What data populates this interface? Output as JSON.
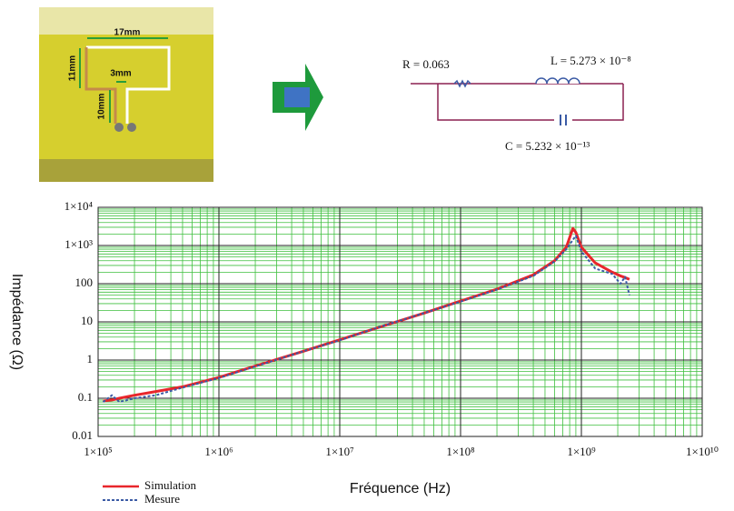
{
  "photo": {
    "width": "17mm",
    "height": "11mm",
    "gap": "3mm",
    "leg": "10mm"
  },
  "circuit": {
    "r": "R = 0.063",
    "l": "L = 5.273 × 10⁻⁸",
    "c": "C = 5.232 × 10⁻¹³"
  },
  "chart_data": {
    "type": "line",
    "x_label": "Fréquence (Hz)",
    "y_label": "Impédance (Ω)",
    "x_log": true,
    "y_log": true,
    "grid": true,
    "legend": "bottom-left",
    "xlim": [
      100000,
      10000000000
    ],
    "xticks": [
      {
        "value": 100000,
        "label": "1×10⁵"
      },
      {
        "value": 1000000,
        "label": "1×10⁶"
      },
      {
        "value": 10000000,
        "label": "1×10⁷"
      },
      {
        "value": 100000000,
        "label": "1×10⁸"
      },
      {
        "value": 1000000000,
        "label": "1×10⁹"
      },
      {
        "value": 10000000000,
        "label": "1×10¹⁰"
      }
    ],
    "ylim": [
      0.01,
      10000
    ],
    "yticks": [
      0.01,
      0.1,
      1,
      10,
      100,
      {
        "value": 1000,
        "label": "1×10³"
      },
      {
        "value": 10000,
        "label": "1×10⁴"
      }
    ],
    "x": [
      110000,
      130000,
      150000,
      200000,
      300000,
      500000,
      1000000,
      2000000,
      5000000,
      10000000,
      20000000,
      50000000,
      100000000,
      200000000,
      400000000,
      600000000,
      750000000,
      850000000,
      900000000,
      1000000000,
      1300000000,
      1800000000,
      2100000000,
      2300000000,
      2500000000
    ],
    "series": [
      {
        "name": "Simulation",
        "color": "#e8262b",
        "dashed": false,
        "values": [
          0.085,
          0.09,
          0.1,
          0.12,
          0.15,
          0.2,
          0.35,
          0.7,
          1.7,
          3.4,
          6.8,
          17,
          35,
          72,
          170,
          400,
          900,
          2800,
          2200,
          900,
          350,
          200,
          160,
          145,
          130
        ]
      },
      {
        "name": "Mesure",
        "color": "#3b5ba5",
        "dashed": true,
        "values": [
          0.08,
          0.12,
          0.08,
          0.1,
          0.12,
          0.19,
          0.34,
          0.68,
          1.7,
          3.3,
          6.9,
          17,
          34,
          70,
          160,
          380,
          800,
          1400,
          1800,
          700,
          250,
          180,
          100,
          150,
          50
        ]
      }
    ]
  }
}
